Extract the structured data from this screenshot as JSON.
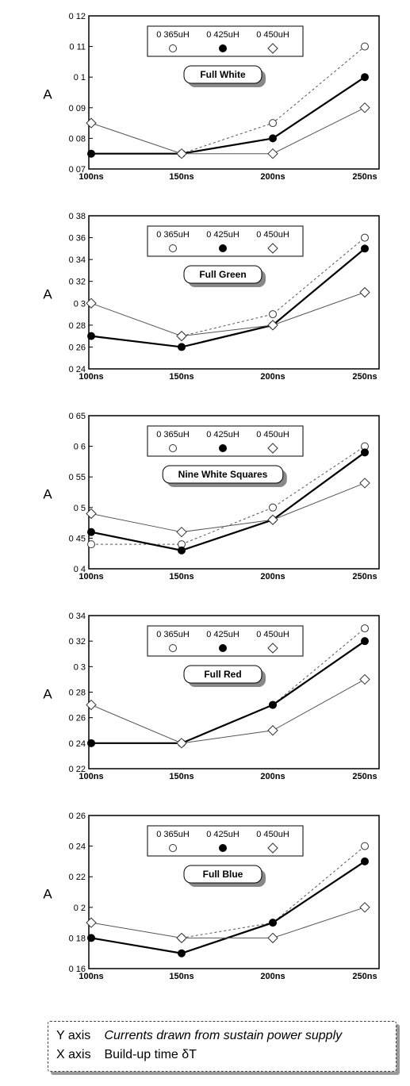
{
  "chart_data": [
    {
      "type": "line",
      "title": "Full White",
      "ylabel": "A",
      "categories": [
        "100ns",
        "150ns",
        "200ns",
        "250ns"
      ],
      "y_tick_labels": [
        "0 07",
        "0 08",
        "0 09",
        "0 1",
        "0 11",
        "0 12"
      ],
      "ylim": [
        0.07,
        0.12
      ],
      "y_ticks": [
        0.07,
        0.08,
        0.09,
        0.1,
        0.11,
        0.12
      ],
      "legend_placement": "top-center",
      "series": [
        {
          "name": "0 365uH",
          "values": [
            null,
            0.075,
            0.085,
            0.11
          ]
        },
        {
          "name": "0 425uH",
          "values": [
            0.075,
            0.075,
            0.08,
            0.1
          ]
        },
        {
          "name": "0 450uH",
          "values": [
            0.085,
            0.075,
            0.075,
            0.09
          ]
        }
      ]
    },
    {
      "type": "line",
      "title": "Full Green",
      "ylabel": "A",
      "categories": [
        "100ns",
        "150ns",
        "200ns",
        "250ns"
      ],
      "y_tick_labels": [
        "0 24",
        "0 26",
        "0 28",
        "0 3",
        "0 32",
        "0 34",
        "0 36",
        "0 38"
      ],
      "ylim": [
        0.24,
        0.38
      ],
      "y_ticks": [
        0.24,
        0.26,
        0.28,
        0.3,
        0.32,
        0.34,
        0.36,
        0.38
      ],
      "legend_placement": "top-center",
      "series": [
        {
          "name": "0 365uH",
          "values": [
            null,
            0.27,
            0.29,
            0.36
          ]
        },
        {
          "name": "0 425uH",
          "values": [
            0.27,
            0.26,
            0.28,
            0.35
          ]
        },
        {
          "name": "0 450uH",
          "values": [
            0.3,
            0.27,
            0.28,
            0.31
          ]
        }
      ]
    },
    {
      "type": "line",
      "title": "Nine White Squares",
      "ylabel": "A",
      "categories": [
        "100ns",
        "150ns",
        "200ns",
        "250ns"
      ],
      "y_tick_labels": [
        "0 4",
        "0 45",
        "0 5",
        "0 55",
        "0 6",
        "0 65"
      ],
      "ylim": [
        0.4,
        0.65
      ],
      "y_ticks": [
        0.4,
        0.45,
        0.5,
        0.55,
        0.6,
        0.65
      ],
      "legend_placement": "top-center",
      "series": [
        {
          "name": "0 365uH",
          "values": [
            0.44,
            0.44,
            0.5,
            0.6
          ]
        },
        {
          "name": "0 425uH",
          "values": [
            0.46,
            0.43,
            0.48,
            0.59
          ]
        },
        {
          "name": "0 450uH",
          "values": [
            0.49,
            0.46,
            0.48,
            0.54
          ]
        }
      ]
    },
    {
      "type": "line",
      "title": "Full Red",
      "ylabel": "A",
      "categories": [
        "100ns",
        "150ns",
        "200ns",
        "250ns"
      ],
      "y_tick_labels": [
        "0 22",
        "0 24",
        "0 26",
        "0 28",
        "0 3",
        "0 32",
        "0 34"
      ],
      "ylim": [
        0.22,
        0.34
      ],
      "y_ticks": [
        0.22,
        0.24,
        0.26,
        0.28,
        0.3,
        0.32,
        0.34
      ],
      "legend_placement": "top-center",
      "series": [
        {
          "name": "0 365uH",
          "values": [
            null,
            0.24,
            0.27,
            0.33
          ]
        },
        {
          "name": "0 425uH",
          "values": [
            0.24,
            0.24,
            0.27,
            0.32
          ]
        },
        {
          "name": "0 450uH",
          "values": [
            0.27,
            0.24,
            0.25,
            0.29
          ]
        }
      ]
    },
    {
      "type": "line",
      "title": "Full Blue",
      "ylabel": "A",
      "categories": [
        "100ns",
        "150ns",
        "200ns",
        "250ns"
      ],
      "y_tick_labels": [
        "0 16",
        "0 18",
        "0 2",
        "0 22",
        "0 24",
        "0 26"
      ],
      "ylim": [
        0.16,
        0.26
      ],
      "y_ticks": [
        0.16,
        0.18,
        0.2,
        0.22,
        0.24,
        0.26
      ],
      "legend_placement": "top-center",
      "series": [
        {
          "name": "0 365uH",
          "values": [
            null,
            0.18,
            0.19,
            0.24
          ]
        },
        {
          "name": "0 425uH",
          "values": [
            0.18,
            0.17,
            0.19,
            0.23
          ]
        },
        {
          "name": "0 450uH",
          "values": [
            0.19,
            0.18,
            0.18,
            0.2
          ]
        }
      ]
    }
  ],
  "caption": {
    "y_key": "Y axis",
    "y_text": "Currents drawn from sustain power supply",
    "x_key": "X axis",
    "x_text": "Build-up time δT"
  }
}
